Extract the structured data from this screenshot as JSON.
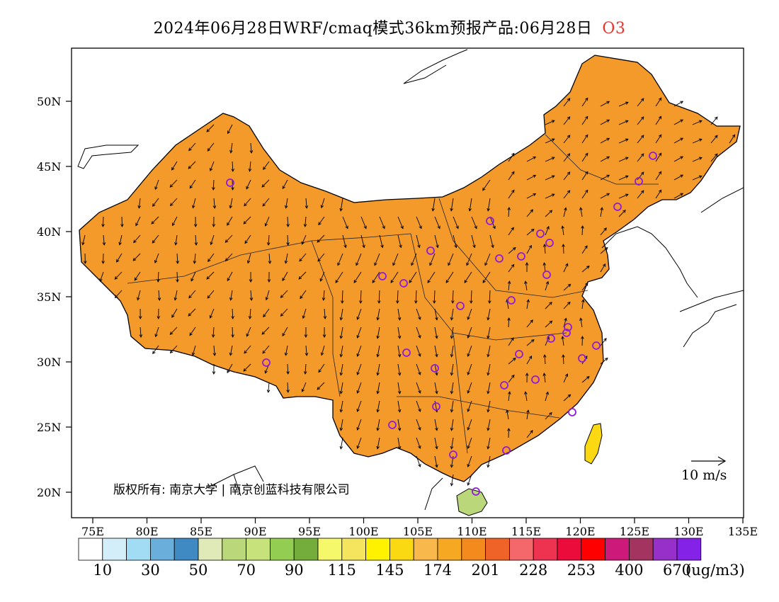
{
  "title": {
    "main": "2024年06月28日WRF/cmaq模式36km预报产品:06月28日",
    "pollutant": "O3"
  },
  "map": {
    "lat_ticks": [
      "50N",
      "45N",
      "40N",
      "35N",
      "30N",
      "25N",
      "20N"
    ],
    "lon_ticks": [
      "75E",
      "80E",
      "85E",
      "90E",
      "95E",
      "100E",
      "105E",
      "110E",
      "115E",
      "120E",
      "125E",
      "130E",
      "135E"
    ],
    "copyright": "版权所有: 南京大学 | 南京创蓝科技有限公司",
    "wind_reference": "10 m/s"
  },
  "colorbar": {
    "colors": [
      "#ffffff",
      "#d3eef9",
      "#a1dcf4",
      "#6aaedc",
      "#3f8ac2",
      "#dfeab8",
      "#bad77a",
      "#c7e27b",
      "#93cd52",
      "#74ad3b",
      "#f4f86a",
      "#f5e45d",
      "#fff200",
      "#fad812",
      "#f8b84b",
      "#f7a823",
      "#f48a1d",
      "#ef6329",
      "#f4676a",
      "#ee3350",
      "#eb0c3c",
      "#ff0000",
      "#cd1979",
      "#a3345f",
      "#9630c8",
      "#8422e8"
    ],
    "labels": [
      "10",
      "30",
      "50",
      "70",
      "90",
      "115",
      "145",
      "174",
      "201",
      "228",
      "253",
      "400",
      "670"
    ],
    "unit": "(ug/m3)"
  },
  "colors": {
    "pollutant_label": "#e8332e",
    "city_marker": "#8e1cd8",
    "land_base": "#f39a2a"
  }
}
